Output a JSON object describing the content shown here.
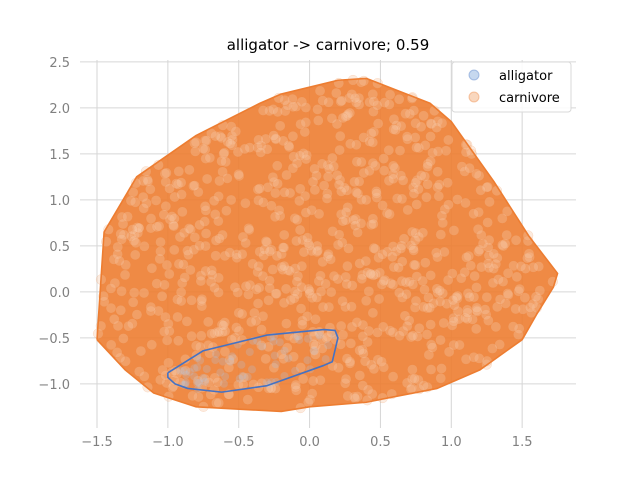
{
  "chart_data": {
    "type": "scatter",
    "title": "alligator -> carnivore; 0.59",
    "xlabel": "",
    "ylabel": "",
    "xlim": [
      -1.62,
      1.88
    ],
    "ylim": [
      -1.48,
      2.52
    ],
    "x_ticks": [
      -1.5,
      -1.0,
      -0.5,
      0.0,
      0.5,
      1.0,
      1.5
    ],
    "x_tick_labels": [
      "−1.5",
      "−1.0",
      "−0.5",
      "0.0",
      "0.5",
      "1.0",
      "1.5"
    ],
    "y_ticks": [
      -1.0,
      -0.5,
      0.0,
      0.5,
      1.0,
      1.5,
      2.0,
      2.5
    ],
    "y_tick_labels": [
      "−1.0",
      "−0.5",
      "0.0",
      "0.5",
      "1.0",
      "1.5",
      "2.0",
      "2.5"
    ],
    "grid": true,
    "legend": "top-right",
    "series": [
      {
        "name": "alligator",
        "color": "#4472c4",
        "marker_fill": "#aec7e8",
        "hull": [
          [
            -1.0,
            -0.88
          ],
          [
            -0.75,
            -0.64
          ],
          [
            -0.3,
            -0.47
          ],
          [
            0.1,
            -0.41
          ],
          [
            0.18,
            -0.42
          ],
          [
            0.2,
            -0.5
          ],
          [
            0.16,
            -0.76
          ],
          [
            0.1,
            -0.8
          ],
          [
            -0.3,
            -1.02
          ],
          [
            -0.62,
            -1.09
          ],
          [
            -0.86,
            -1.05
          ],
          [
            -0.95,
            -1.0
          ],
          [
            -1.0,
            -0.93
          ]
        ]
      },
      {
        "name": "carnivore",
        "color": "#ed7d31",
        "marker_fill": "#f7c6a3",
        "hull": [
          [
            -1.5,
            -0.52
          ],
          [
            -1.45,
            0.65
          ],
          [
            -1.22,
            1.25
          ],
          [
            -0.8,
            1.7
          ],
          [
            -0.35,
            2.05
          ],
          [
            -0.2,
            2.15
          ],
          [
            0.2,
            2.3
          ],
          [
            0.4,
            2.32
          ],
          [
            0.85,
            2.05
          ],
          [
            1.0,
            1.85
          ],
          [
            1.3,
            1.2
          ],
          [
            1.55,
            0.6
          ],
          [
            1.75,
            0.2
          ],
          [
            1.72,
            0.05
          ],
          [
            1.6,
            -0.25
          ],
          [
            1.5,
            -0.52
          ],
          [
            1.2,
            -0.85
          ],
          [
            0.9,
            -1.05
          ],
          [
            0.4,
            -1.2
          ],
          [
            0.0,
            -1.25
          ],
          [
            -0.2,
            -1.3
          ],
          [
            -0.8,
            -1.25
          ],
          [
            -1.1,
            -1.1
          ],
          [
            -1.3,
            -0.85
          ],
          [
            -1.5,
            -0.52
          ]
        ]
      }
    ]
  }
}
